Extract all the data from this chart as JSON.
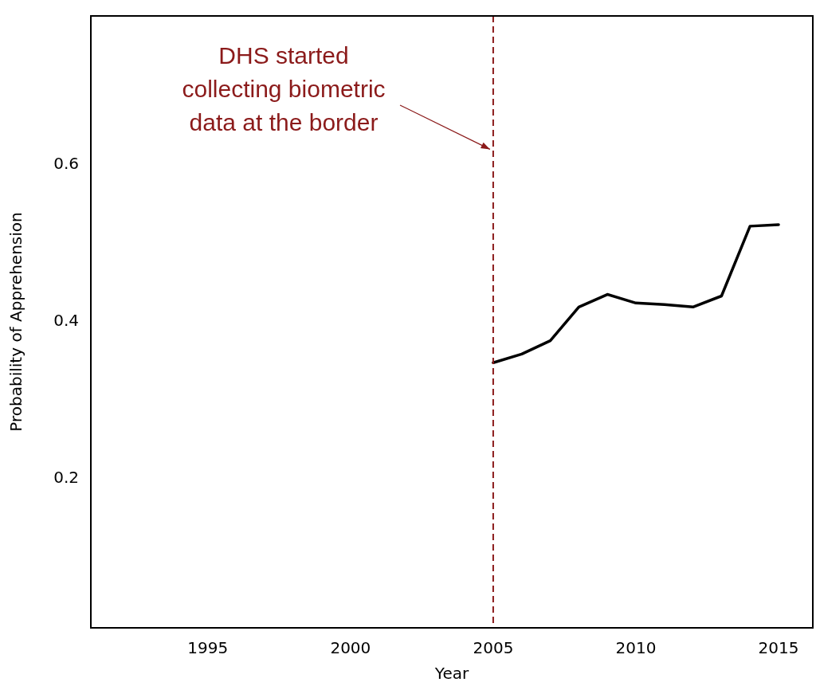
{
  "chart_data": {
    "type": "line",
    "xlabel": "Year",
    "ylabel": "Probability of Apprehension",
    "x": [
      2005,
      2006,
      2007,
      2008,
      2009,
      2010,
      2011,
      2012,
      2013,
      2014,
      2015
    ],
    "series": [
      {
        "color": "#000000",
        "values": [
          0.348,
          0.359,
          0.376,
          0.419,
          0.435,
          0.424,
          0.422,
          0.419,
          0.433,
          0.522,
          0.524
        ]
      }
    ],
    "xlim": [
      1990.9,
      2016.2
    ],
    "xticks": [
      1995,
      2000,
      2005,
      2010,
      2015
    ],
    "ylim": [
      0.01,
      0.79
    ],
    "yticks": [
      0.2,
      0.4,
      0.6
    ],
    "ref_lines": [
      {
        "axis": "x",
        "value": 2005,
        "color": "#8b1a1a",
        "line_style": "dashed"
      }
    ],
    "annotations": [
      {
        "text": "DHS started collecting biometric data at the border",
        "x": 2005,
        "y": 0.62
      }
    ],
    "grid": false,
    "legend": false,
    "marker": "none",
    "line_style": "solid"
  }
}
